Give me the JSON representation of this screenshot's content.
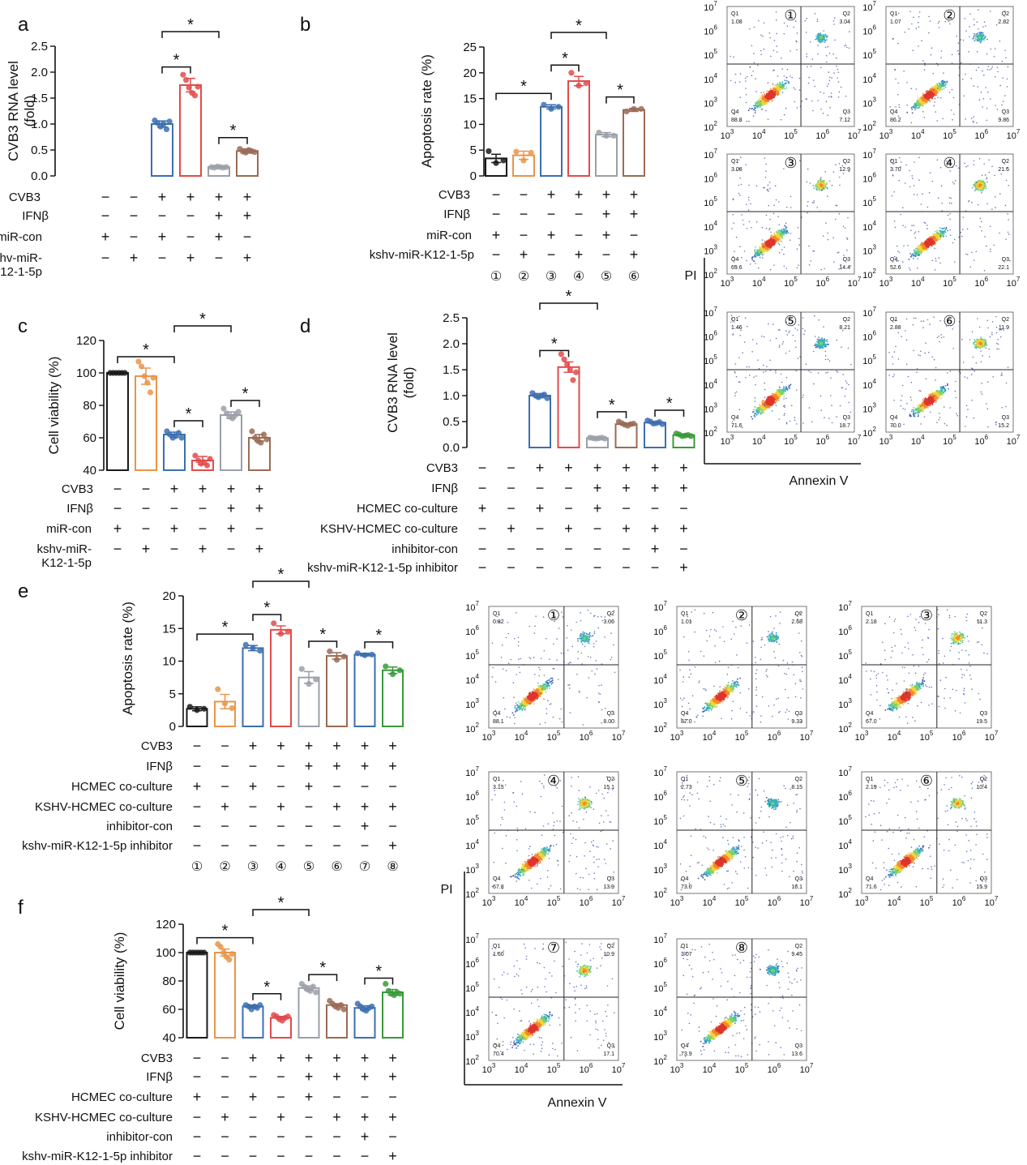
{
  "colors": {
    "black": "#1a1a1a",
    "orange": "#e8954a",
    "blue": "#3c6fb0",
    "red": "#e24b4b",
    "gray": "#9aa0a8",
    "brown": "#9a6b55",
    "green": "#3a9a3a"
  },
  "icons": {
    "panel_number_icon": "circled-number",
    "significance_marker": "asterisk"
  },
  "sig_marker": "*",
  "chart_data": [
    {
      "id": "a",
      "label": "a",
      "type": "bar",
      "ylabel": "CVB3 RNA level\n(fold)",
      "ylim": [
        0,
        2.5
      ],
      "ticks": [
        0.0,
        0.5,
        1.0,
        1.5,
        2.0,
        2.5
      ],
      "tick_labels": [
        "0.0",
        "0.5",
        "1.0",
        "1.5",
        "2.0",
        "2.5"
      ],
      "values": [
        0,
        0,
        1.0,
        1.75,
        0.17,
        0.48
      ],
      "errors": [
        0,
        0,
        0.06,
        0.13,
        0.01,
        0.04
      ],
      "dots": [
        [],
        [],
        [
          1.07,
          1.02,
          0.95,
          1.0,
          0.9,
          1.05
        ],
        [
          1.95,
          1.85,
          1.7,
          1.6,
          1.55,
          1.72
        ],
        [
          0.17,
          0.16,
          0.18,
          0.17,
          0.16,
          0.17
        ],
        [
          0.52,
          0.47,
          0.45,
          0.5,
          0.48,
          0.46
        ]
      ],
      "colors": [
        "#1a1a1a",
        "#e8954a",
        "#3c6fb0",
        "#e24b4b",
        "#9aa0a8",
        "#9a6b55"
      ],
      "brackets": [
        [
          3,
          4,
          0
        ],
        [
          5,
          6,
          0
        ],
        [
          3,
          5,
          1
        ]
      ],
      "rows": [
        {
          "label": "CVB3",
          "marks": [
            "−",
            "−",
            "+",
            "+",
            "+",
            "+"
          ]
        },
        {
          "label": "IFNβ",
          "marks": [
            "−",
            "−",
            "−",
            "−",
            "+",
            "+"
          ]
        },
        {
          "label": "miR-con",
          "marks": [
            "+",
            "−",
            "+",
            "−",
            "+",
            "−"
          ]
        },
        {
          "label": "kshv-miR-\nK12-1-5p",
          "marks": [
            "−",
            "+",
            "−",
            "+",
            "−",
            "+"
          ]
        }
      ]
    },
    {
      "id": "b",
      "label": "b",
      "type": "bar",
      "ylabel": "Apoptosis rate (%)",
      "ylim": [
        0,
        25
      ],
      "ticks": [
        0,
        5,
        10,
        15,
        20,
        25
      ],
      "tick_labels": [
        "0",
        "5",
        "10",
        "15",
        "20",
        "25"
      ],
      "values": [
        3.4,
        4.0,
        13.4,
        18.4,
        8.0,
        12.8
      ],
      "errors": [
        0.8,
        0.8,
        0.4,
        0.9,
        0.4,
        0.3
      ],
      "dots": [
        [
          4.8,
          2.5,
          3.0
        ],
        [
          4.7,
          3.0,
          4.5
        ],
        [
          13.8,
          13.0,
          13.4
        ],
        [
          20.0,
          17.5,
          18.0
        ],
        [
          8.4,
          7.8,
          7.8
        ],
        [
          12.5,
          13.0,
          13.0
        ]
      ],
      "colors": [
        "#1a1a1a",
        "#e8954a",
        "#3c6fb0",
        "#e24b4b",
        "#9aa0a8",
        "#9a6b55"
      ],
      "brackets": [
        [
          1,
          3,
          0
        ],
        [
          3,
          4,
          0
        ],
        [
          5,
          6,
          0
        ],
        [
          3,
          5,
          1
        ]
      ],
      "rows": [
        {
          "label": "CVB3",
          "marks": [
            "−",
            "−",
            "+",
            "+",
            "+",
            "+"
          ]
        },
        {
          "label": "IFNβ",
          "marks": [
            "−",
            "−",
            "−",
            "−",
            "+",
            "+"
          ]
        },
        {
          "label": "miR-con",
          "marks": [
            "+",
            "−",
            "+",
            "−",
            "+",
            "−"
          ]
        },
        {
          "label": "kshv-miR-K12-1-5p",
          "marks": [
            "−",
            "+",
            "−",
            "+",
            "−",
            "+"
          ]
        }
      ],
      "numbers": [
        "①",
        "②",
        "③",
        "④",
        "⑤",
        "⑥"
      ]
    },
    {
      "id": "c",
      "label": "c",
      "type": "bar",
      "ylabel": "Cell viability (%)",
      "ylim": [
        40,
        120
      ],
      "ticks": [
        40,
        60,
        80,
        100,
        120
      ],
      "tick_labels": [
        "40",
        "60",
        "80",
        "100",
        "120"
      ],
      "values": [
        100,
        98,
        62,
        46,
        74,
        60
      ],
      "errors": [
        0.3,
        5,
        1.5,
        2.5,
        2,
        2
      ],
      "dots": [
        [
          100,
          100,
          100,
          100,
          100,
          100
        ],
        [
          107,
          104,
          98,
          94,
          88,
          97
        ],
        [
          64,
          62,
          60,
          61,
          63,
          60
        ],
        [
          49,
          46,
          44,
          45,
          43,
          47
        ],
        [
          78,
          75,
          73,
          72,
          74,
          76
        ],
        [
          64,
          60,
          58,
          57,
          62,
          59
        ]
      ],
      "colors": [
        "#1a1a1a",
        "#e8954a",
        "#3c6fb0",
        "#e24b4b",
        "#9aa0a8",
        "#9a6b55"
      ],
      "brackets": [
        [
          1,
          3,
          0
        ],
        [
          3,
          4,
          0
        ],
        [
          5,
          6,
          0
        ],
        [
          3,
          5,
          1
        ]
      ],
      "rows": [
        {
          "label": "CVB3",
          "marks": [
            "−",
            "−",
            "+",
            "+",
            "+",
            "+"
          ]
        },
        {
          "label": "IFNβ",
          "marks": [
            "−",
            "−",
            "−",
            "−",
            "+",
            "+"
          ]
        },
        {
          "label": "miR-con",
          "marks": [
            "+",
            "−",
            "+",
            "−",
            "+",
            "−"
          ]
        },
        {
          "label": "kshv-miR-\nK12-1-5p",
          "marks": [
            "−",
            "+",
            "−",
            "+",
            "−",
            "+"
          ]
        }
      ]
    },
    {
      "id": "d",
      "label": "d",
      "type": "bar",
      "ylabel": "CVB3 RNA level\n(fold)",
      "ylim": [
        0,
        2.5
      ],
      "ticks": [
        0.0,
        0.5,
        1.0,
        1.5,
        2.0,
        2.5
      ],
      "tick_labels": [
        "0.0",
        "0.5",
        "1.0",
        "1.5",
        "2.0",
        "2.5"
      ],
      "values": [
        0,
        0,
        1.0,
        1.55,
        0.18,
        0.45,
        0.48,
        0.24
      ],
      "errors": [
        0,
        0,
        0.04,
        0.1,
        0.01,
        0.02,
        0.02,
        0.02
      ],
      "dots": [
        [],
        [],
        [
          1.05,
          1.0,
          0.97,
          1.0,
          1.02,
          0.95
        ],
        [
          1.8,
          1.7,
          1.6,
          1.5,
          1.3,
          1.45
        ],
        [
          0.19,
          0.18,
          0.17,
          0.18,
          0.19,
          0.17
        ],
        [
          0.5,
          0.47,
          0.44,
          0.42,
          0.45,
          0.46
        ],
        [
          0.52,
          0.5,
          0.46,
          0.47,
          0.49,
          0.45
        ],
        [
          0.27,
          0.25,
          0.22,
          0.23,
          0.24,
          0.22
        ]
      ],
      "colors": [
        "#1a1a1a",
        "#e8954a",
        "#3c6fb0",
        "#e24b4b",
        "#9aa0a8",
        "#9a6b55",
        "#3c6fb0",
        "#3a9a3a"
      ],
      "brackets": [
        [
          3,
          4,
          0
        ],
        [
          5,
          6,
          0
        ],
        [
          7,
          8,
          0
        ],
        [
          3,
          5,
          1
        ]
      ],
      "rows": [
        {
          "label": "CVB3",
          "marks": [
            "−",
            "−",
            "+",
            "+",
            "+",
            "+",
            "+",
            "+"
          ]
        },
        {
          "label": "IFNβ",
          "marks": [
            "−",
            "−",
            "−",
            "−",
            "+",
            "+",
            "+",
            "+"
          ]
        },
        {
          "label": "HCMEC co-culture",
          "marks": [
            "+",
            "−",
            "+",
            "−",
            "+",
            "−",
            "−",
            "−"
          ]
        },
        {
          "label": "KSHV-HCMEC co-culture",
          "marks": [
            "−",
            "+",
            "−",
            "+",
            "−",
            "+",
            "+",
            "+"
          ]
        },
        {
          "label": "inhibitor-con",
          "marks": [
            "−",
            "−",
            "−",
            "−",
            "−",
            "−",
            "+",
            "−"
          ]
        },
        {
          "label": "kshv-miR-K12-1-5p inhibitor",
          "marks": [
            "−",
            "−",
            "−",
            "−",
            "−",
            "−",
            "−",
            "+"
          ]
        }
      ]
    },
    {
      "id": "e",
      "label": "e",
      "type": "bar",
      "ylabel": "Apoptosis rate (%)",
      "ylim": [
        0,
        20
      ],
      "ticks": [
        0,
        5,
        10,
        15,
        20
      ],
      "tick_labels": [
        "0",
        "5",
        "10",
        "15",
        "20"
      ],
      "values": [
        2.7,
        3.8,
        12.0,
        14.8,
        7.5,
        10.8,
        11.0,
        8.6
      ],
      "errors": [
        0.3,
        1.1,
        0.4,
        0.6,
        0.9,
        0.5,
        0.2,
        0.5
      ],
      "dots": [
        [
          3.0,
          2.5,
          2.7
        ],
        [
          5.7,
          3.5,
          2.8
        ],
        [
          12.5,
          12.0,
          11.6
        ],
        [
          15.8,
          14.2,
          14.5
        ],
        [
          8.8,
          6.5,
          7.2
        ],
        [
          11.5,
          10.2,
          10.7
        ],
        [
          11.2,
          10.9,
          11.0
        ],
        [
          9.2,
          8.0,
          8.6
        ]
      ],
      "colors": [
        "#1a1a1a",
        "#e8954a",
        "#3c6fb0",
        "#e24b4b",
        "#9aa0a8",
        "#9a6b55",
        "#3c6fb0",
        "#3a9a3a"
      ],
      "brackets": [
        [
          1,
          3,
          0
        ],
        [
          3,
          4,
          0
        ],
        [
          5,
          6,
          0
        ],
        [
          7,
          8,
          0
        ],
        [
          3,
          5,
          1
        ]
      ],
      "rows": [
        {
          "label": "CVB3",
          "marks": [
            "−",
            "−",
            "+",
            "+",
            "+",
            "+",
            "+",
            "+"
          ]
        },
        {
          "label": "IFNβ",
          "marks": [
            "−",
            "−",
            "−",
            "−",
            "+",
            "+",
            "+",
            "+"
          ]
        },
        {
          "label": "HCMEC co-culture",
          "marks": [
            "+",
            "−",
            "+",
            "−",
            "+",
            "−",
            "−",
            "−"
          ]
        },
        {
          "label": "KSHV-HCMEC co-culture",
          "marks": [
            "−",
            "+",
            "−",
            "+",
            "−",
            "+",
            "+",
            "+"
          ]
        },
        {
          "label": "inhibitor-con",
          "marks": [
            "−",
            "−",
            "−",
            "−",
            "−",
            "−",
            "+",
            "−"
          ]
        },
        {
          "label": "kshv-miR-K12-1-5p inhibitor",
          "marks": [
            "−",
            "−",
            "−",
            "−",
            "−",
            "−",
            "−",
            "+"
          ]
        }
      ],
      "numbers": [
        "①",
        "②",
        "③",
        "④",
        "⑤",
        "⑥",
        "⑦",
        "⑧"
      ]
    },
    {
      "id": "f",
      "label": "f",
      "type": "bar",
      "ylabel": "Cell viability (%)",
      "ylim": [
        40,
        120
      ],
      "ticks": [
        40,
        60,
        80,
        100,
        120
      ],
      "tick_labels": [
        "40",
        "60",
        "80",
        "100",
        "120"
      ],
      "values": [
        100,
        100,
        62,
        54,
        75,
        63,
        61,
        72
      ],
      "errors": [
        0.2,
        2.5,
        1.0,
        1.0,
        1.5,
        1.0,
        1.5,
        2.0
      ],
      "dots": [
        [
          100,
          100,
          100,
          100,
          100,
          100
        ],
        [
          106,
          104,
          100,
          97,
          95,
          99
        ],
        [
          63,
          62,
          60,
          62,
          61,
          63
        ],
        [
          56,
          55,
          53,
          52,
          54,
          55
        ],
        [
          78,
          76,
          74,
          73,
          76,
          72
        ],
        [
          66,
          64,
          62,
          61,
          63,
          60
        ],
        [
          64,
          62,
          60,
          59,
          61,
          62
        ],
        [
          78,
          73,
          71,
          70,
          72,
          71
        ]
      ],
      "colors": [
        "#1a1a1a",
        "#e8954a",
        "#3c6fb0",
        "#e24b4b",
        "#9aa0a8",
        "#9a6b55",
        "#3c6fb0",
        "#3a9a3a"
      ],
      "brackets": [
        [
          1,
          3,
          0
        ],
        [
          3,
          4,
          0
        ],
        [
          5,
          6,
          0
        ],
        [
          7,
          8,
          0
        ],
        [
          3,
          5,
          1
        ]
      ],
      "rows": [
        {
          "label": "CVB3",
          "marks": [
            "−",
            "−",
            "+",
            "+",
            "+",
            "+",
            "+",
            "+"
          ]
        },
        {
          "label": "IFNβ",
          "marks": [
            "−",
            "−",
            "−",
            "−",
            "+",
            "+",
            "+",
            "+"
          ]
        },
        {
          "label": "HCMEC co-culture",
          "marks": [
            "+",
            "−",
            "+",
            "−",
            "+",
            "−",
            "−",
            "−"
          ]
        },
        {
          "label": "KSHV-HCMEC co-culture",
          "marks": [
            "−",
            "+",
            "−",
            "+",
            "−",
            "+",
            "+",
            "+"
          ]
        },
        {
          "label": "inhibitor-con",
          "marks": [
            "−",
            "−",
            "−",
            "−",
            "−",
            "−",
            "+",
            "−"
          ]
        },
        {
          "label": "kshv-miR-K12-1-5p inhibitor",
          "marks": [
            "−",
            "−",
            "−",
            "−",
            "−",
            "−",
            "−",
            "+"
          ]
        }
      ]
    },
    {
      "id": "flow1",
      "type": "heatmap",
      "kind": "flow-cytometry grid",
      "xlabel": "Annexin V",
      "ylabel": "PI",
      "axis_tick_labels": [
        "10",
        "10",
        "10",
        "10",
        "10"
      ],
      "axis_tick_exponents": [
        "3",
        "4",
        "5",
        "6",
        "7"
      ],
      "y_tick_exponents": [
        "2",
        "3",
        "4",
        "5",
        "6",
        "7"
      ],
      "plots": [
        {
          "num": "①",
          "q1": "1.08",
          "q2": "3.04",
          "q3": "7.12",
          "q4": "88.8"
        },
        {
          "num": "②",
          "q1": "1.07",
          "q2": "2.82",
          "q3": "9.86",
          "q4": "86.2"
        },
        {
          "num": "③",
          "q1": "3.08",
          "q2": "12.9",
          "q3": "14.4",
          "q4": "69.6"
        },
        {
          "num": "④",
          "q1": "3.70",
          "q2": "21.6",
          "q3": "22.1",
          "q4": "52.6"
        },
        {
          "num": "⑤",
          "q1": "1.46",
          "q2": "8.21",
          "q3": "18.7",
          "q4": "71.6"
        },
        {
          "num": "⑥",
          "q1": "2.88",
          "q2": "11.9",
          "q3": "15.2",
          "q4": "70.0"
        }
      ]
    },
    {
      "id": "flow2",
      "type": "heatmap",
      "kind": "flow-cytometry grid",
      "xlabel": "Annexin V",
      "ylabel": "PI",
      "plots": [
        {
          "num": "①",
          "q1": "0.82",
          "q2": "3.06",
          "q3": "8.00",
          "q4": "88.1"
        },
        {
          "num": "②",
          "q1": "1.01",
          "q2": "2.68",
          "q3": "9.33",
          "q4": "87.0"
        },
        {
          "num": "③",
          "q1": "2.18",
          "q2": "11.3",
          "q3": "19.5",
          "q4": "67.0"
        },
        {
          "num": "④",
          "q1": "3.15",
          "q2": "15.1",
          "q3": "13.9",
          "q4": "67.8"
        },
        {
          "num": "⑤",
          "q1": "2.73",
          "q2": "8.15",
          "q3": "16.1",
          "q4": "73.0"
        },
        {
          "num": "⑥",
          "q1": "2.19",
          "q2": "10.4",
          "q3": "15.9",
          "q4": "71.6"
        },
        {
          "num": "⑦",
          "q1": "1.60",
          "q2": "10.9",
          "q3": "17.1",
          "q4": "70.4"
        },
        {
          "num": "⑧",
          "q1": "3.07",
          "q2": "9.45",
          "q3": "13.6",
          "q4": "73.9"
        }
      ]
    }
  ]
}
